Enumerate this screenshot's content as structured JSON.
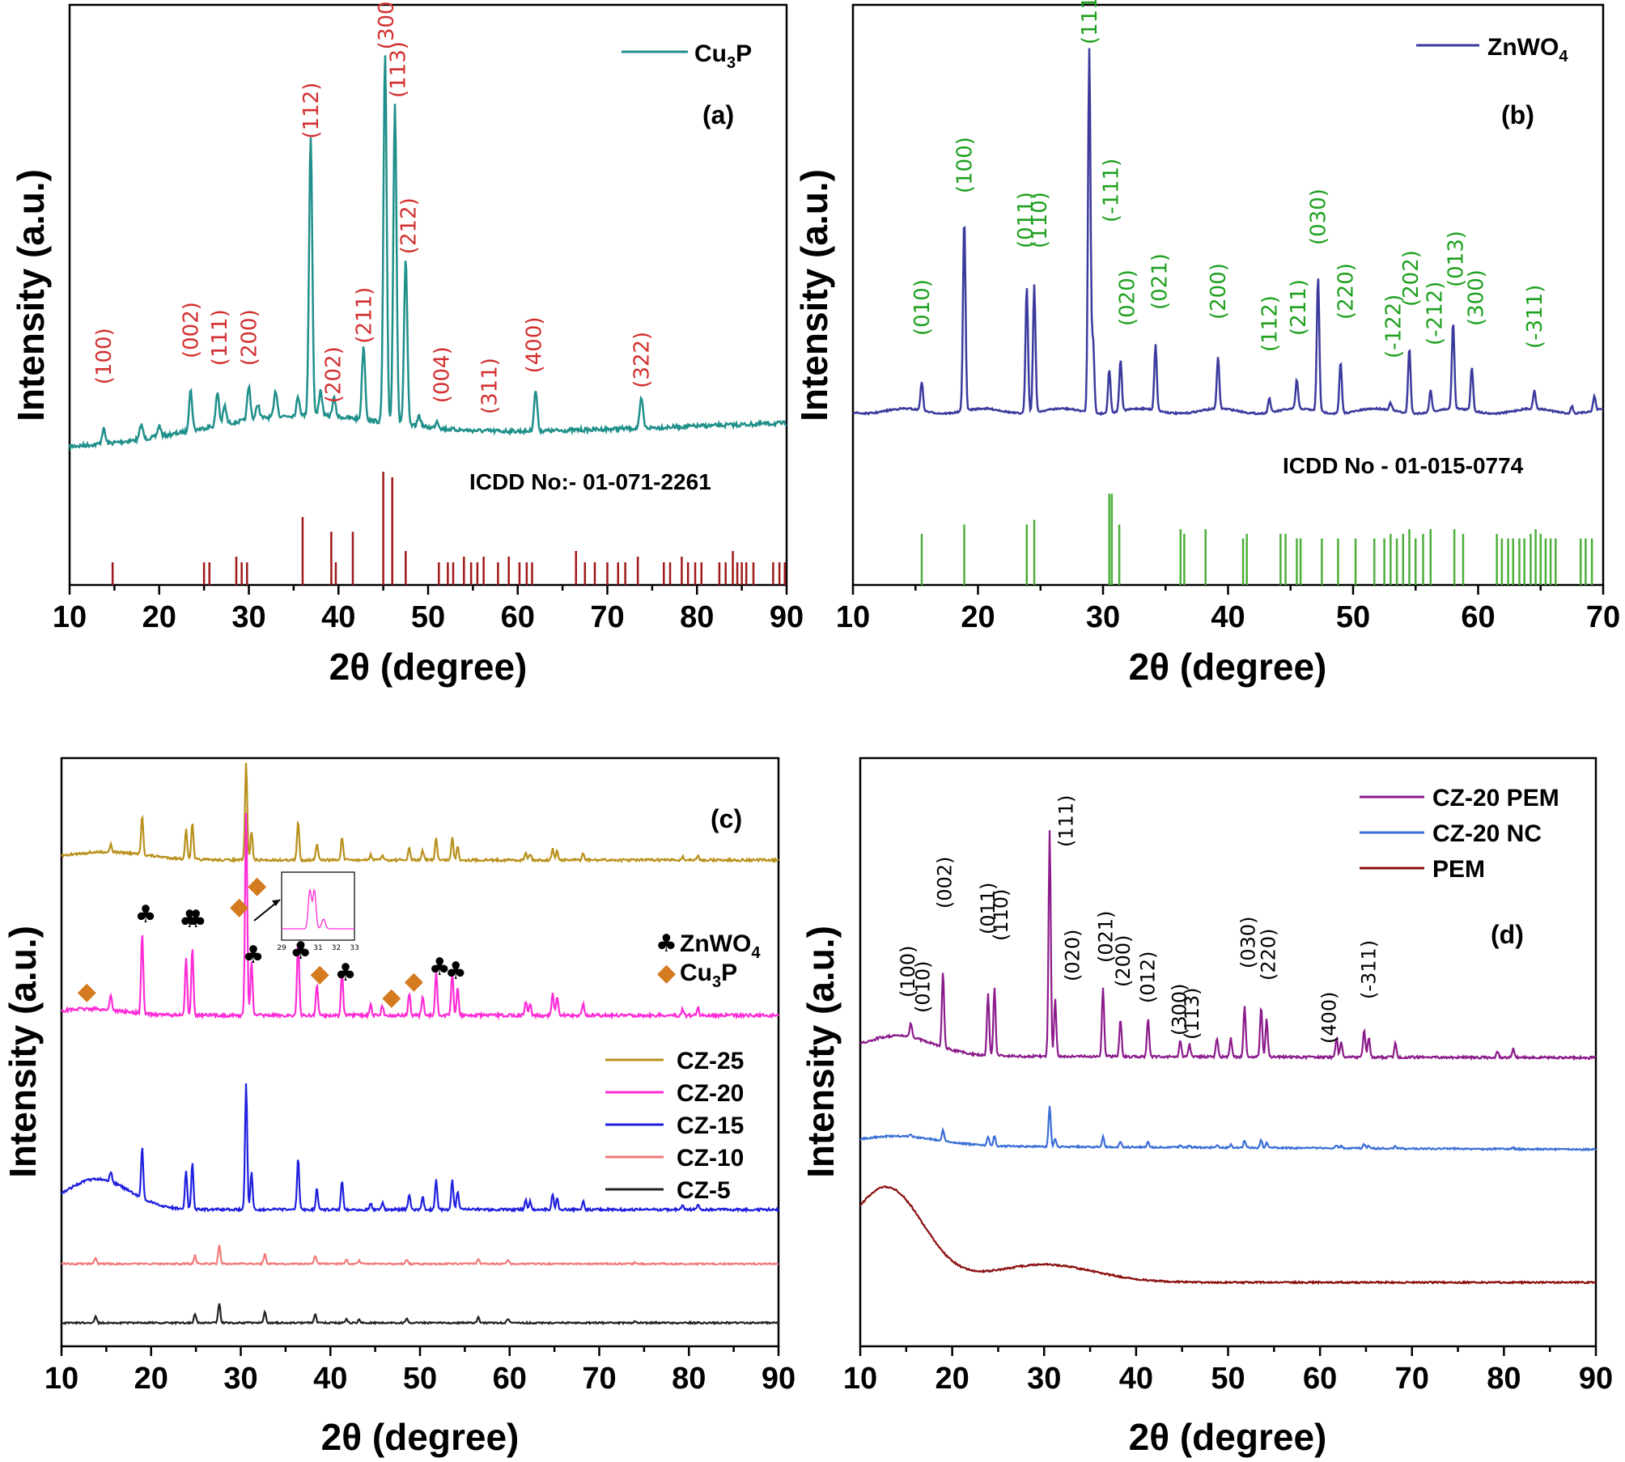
{
  "chart_data": [
    {
      "panel": "(a)",
      "type": "line",
      "xlabel": "2θ (degree)",
      "ylabel": "Intensity (a.u.)",
      "xlim": [
        10,
        90
      ],
      "xticks": [
        "10",
        "20",
        "30",
        "40",
        "50",
        "60",
        "70",
        "80",
        "90"
      ],
      "series": [
        {
          "name": "Cu3P",
          "color": "#1f8f8a",
          "baseline_start": 0.08,
          "baseline_end": 0.29
        }
      ],
      "peaks": [
        [
          13.8,
          0.04
        ],
        [
          18,
          0.04
        ],
        [
          20,
          0.03
        ],
        [
          23.5,
          0.11
        ],
        [
          26.5,
          0.09
        ],
        [
          27.3,
          0.05
        ],
        [
          30,
          0.09
        ],
        [
          31,
          0.04
        ],
        [
          33,
          0.07
        ],
        [
          35.5,
          0.05
        ],
        [
          36.9,
          0.76
        ],
        [
          38,
          0.07
        ],
        [
          39.5,
          0.05
        ],
        [
          42.8,
          0.2
        ],
        [
          45.2,
          1.0
        ],
        [
          46.3,
          0.87
        ],
        [
          47.5,
          0.45
        ],
        [
          49,
          0.03
        ],
        [
          51,
          0.02
        ],
        [
          62,
          0.11
        ],
        [
          73.8,
          0.08
        ]
      ],
      "ref_label": "ICDD No:- 01-071-2261",
      "ref_color": "#a01818",
      "ref_lines": [
        [
          14.8,
          0.2
        ],
        [
          25,
          0.2
        ],
        [
          25.6,
          0.2
        ],
        [
          28.6,
          0.25
        ],
        [
          29.2,
          0.2
        ],
        [
          29.8,
          0.2
        ],
        [
          36,
          0.6
        ],
        [
          39.2,
          0.47
        ],
        [
          39.7,
          0.2
        ],
        [
          41.6,
          0.47
        ],
        [
          45,
          1.0
        ],
        [
          46,
          0.95
        ],
        [
          47.5,
          0.3
        ],
        [
          51.2,
          0.2
        ],
        [
          52.2,
          0.2
        ],
        [
          52.8,
          0.2
        ],
        [
          54,
          0.25
        ],
        [
          54.8,
          0.2
        ],
        [
          55.5,
          0.2
        ],
        [
          56.2,
          0.25
        ],
        [
          57.8,
          0.2
        ],
        [
          59,
          0.25
        ],
        [
          60.2,
          0.2
        ],
        [
          61,
          0.2
        ],
        [
          61.6,
          0.2
        ],
        [
          66.5,
          0.3
        ],
        [
          67.5,
          0.2
        ],
        [
          68.6,
          0.2
        ],
        [
          70,
          0.2
        ],
        [
          71.2,
          0.2
        ],
        [
          72,
          0.2
        ],
        [
          73.4,
          0.25
        ],
        [
          76.3,
          0.2
        ],
        [
          77,
          0.2
        ],
        [
          78.3,
          0.25
        ],
        [
          79,
          0.2
        ],
        [
          79.8,
          0.2
        ],
        [
          80.5,
          0.2
        ],
        [
          82.5,
          0.2
        ],
        [
          83.2,
          0.2
        ],
        [
          84,
          0.3
        ],
        [
          84.5,
          0.2
        ],
        [
          85,
          0.2
        ],
        [
          85.5,
          0.2
        ],
        [
          86.3,
          0.2
        ],
        [
          88.5,
          0.2
        ],
        [
          89.2,
          0.2
        ],
        [
          89.8,
          0.2
        ]
      ],
      "hkl": [
        [
          "(100)",
          13.8,
          0.18
        ],
        [
          "(002)",
          23.5,
          0.25
        ],
        [
          "(111)",
          26.7,
          0.23
        ],
        [
          "(200)",
          30,
          0.23
        ],
        [
          "(112)",
          36.9,
          0.84
        ],
        [
          "(202)",
          39.4,
          0.13
        ],
        [
          "(211)",
          42.8,
          0.29
        ],
        [
          "(300)",
          45.3,
          1.08
        ],
        [
          "(113)",
          46.6,
          0.95
        ],
        [
          "(212)",
          47.8,
          0.53
        ],
        [
          "(004)",
          51.5,
          0.13
        ],
        [
          "(311)",
          56.8,
          0.1
        ],
        [
          "(400)",
          61.8,
          0.21
        ],
        [
          "(322)",
          73.8,
          0.17
        ]
      ]
    },
    {
      "panel": "(b)",
      "type": "line",
      "xlabel": "2θ (degree)",
      "ylabel": "Intensity (a.u.)",
      "xlim": [
        10,
        70
      ],
      "xticks": [
        "10",
        "20",
        "30",
        "40",
        "50",
        "60",
        "70"
      ],
      "series": [
        {
          "name": "ZnWO4",
          "color": "#3b3b9e",
          "baseline_start": 0.07,
          "baseline_end": 0.07
        }
      ],
      "peaks": [
        [
          15.5,
          0.08
        ],
        [
          18.9,
          0.53
        ],
        [
          23.9,
          0.35
        ],
        [
          24.5,
          0.35
        ],
        [
          28.9,
          1.0
        ],
        [
          29.2,
          0.2
        ],
        [
          30.5,
          0.12
        ],
        [
          31.4,
          0.14
        ],
        [
          34.2,
          0.18
        ],
        [
          39.2,
          0.14
        ],
        [
          43.3,
          0.04
        ],
        [
          45.5,
          0.08
        ],
        [
          47.2,
          0.37
        ],
        [
          49,
          0.14
        ],
        [
          53,
          0.02
        ],
        [
          54.5,
          0.18
        ],
        [
          56.2,
          0.06
        ],
        [
          58,
          0.24
        ],
        [
          59.5,
          0.12
        ],
        [
          64.5,
          0.05
        ],
        [
          67.5,
          0.02
        ],
        [
          69.3,
          0.04
        ]
      ],
      "ref_label": "ICDD No - 01-015-0774",
      "ref_color": "#4caf3a",
      "ref_lines": [
        [
          15.5,
          0.55
        ],
        [
          18.9,
          0.65
        ],
        [
          23.9,
          0.65
        ],
        [
          24.5,
          0.7
        ],
        [
          30.5,
          0.98
        ],
        [
          30.7,
          0.98
        ],
        [
          31.3,
          0.65
        ],
        [
          36.2,
          0.6
        ],
        [
          36.5,
          0.55
        ],
        [
          38.2,
          0.6
        ],
        [
          41.2,
          0.5
        ],
        [
          41.5,
          0.55
        ],
        [
          44.2,
          0.55
        ],
        [
          44.6,
          0.55
        ],
        [
          45.5,
          0.5
        ],
        [
          45.8,
          0.5
        ],
        [
          47.5,
          0.5
        ],
        [
          48.8,
          0.5
        ],
        [
          50.2,
          0.5
        ],
        [
          51.7,
          0.5
        ],
        [
          52.5,
          0.5
        ],
        [
          53,
          0.55
        ],
        [
          53.5,
          0.5
        ],
        [
          54,
          0.55
        ],
        [
          54.5,
          0.6
        ],
        [
          55,
          0.5
        ],
        [
          55.6,
          0.55
        ],
        [
          56.2,
          0.6
        ],
        [
          58.1,
          0.6
        ],
        [
          58.8,
          0.55
        ],
        [
          61.5,
          0.55
        ],
        [
          61.9,
          0.5
        ],
        [
          62.4,
          0.5
        ],
        [
          62.8,
          0.5
        ],
        [
          63.3,
          0.5
        ],
        [
          63.7,
          0.5
        ],
        [
          64.2,
          0.55
        ],
        [
          64.6,
          0.6
        ],
        [
          65,
          0.55
        ],
        [
          65.4,
          0.5
        ],
        [
          65.8,
          0.5
        ],
        [
          66.2,
          0.5
        ],
        [
          68.2,
          0.5
        ],
        [
          68.6,
          0.5
        ],
        [
          69.1,
          0.5
        ]
      ],
      "hkl": [
        [
          "(010)",
          15.5,
          0.17
        ],
        [
          "(100)",
          18.9,
          0.61
        ],
        [
          "(011)",
          23.8,
          0.44
        ],
        [
          "(110)",
          24.9,
          0.44
        ],
        [
          "(111)",
          28.9,
          1.07
        ],
        [
          "(-111)",
          30.6,
          0.52
        ],
        [
          "(020)",
          31.9,
          0.2
        ],
        [
          "(021)",
          34.5,
          0.25
        ],
        [
          "(200)",
          39.2,
          0.22
        ],
        [
          "(112)",
          43.3,
          0.12
        ],
        [
          "(211)",
          45.6,
          0.17
        ],
        [
          "(030)",
          47.2,
          0.45
        ],
        [
          "(220)",
          49.4,
          0.22
        ],
        [
          "(-122)",
          53.2,
          0.1
        ],
        [
          "(202)",
          54.6,
          0.26
        ],
        [
          "(-212)",
          56.5,
          0.14
        ],
        [
          "(013)",
          58.2,
          0.32
        ],
        [
          "(300)",
          59.8,
          0.2
        ],
        [
          "(-311)",
          64.5,
          0.13
        ]
      ]
    },
    {
      "panel": "(c)",
      "type": "line",
      "xlabel": "2θ (degree)",
      "ylabel": "Intensity (a.u.)",
      "xlim": [
        10,
        90
      ],
      "xticks": [
        "10",
        "20",
        "30",
        "40",
        "50",
        "60",
        "70",
        "80",
        "90"
      ],
      "series": [
        {
          "name": "CZ-25",
          "color": "#b8901a"
        },
        {
          "name": "CZ-20",
          "color": "#ff2bd6"
        },
        {
          "name": "CZ-15",
          "color": "#1f1fe0"
        },
        {
          "name": "CZ-10",
          "color": "#f07a7a"
        },
        {
          "name": "CZ-5",
          "color": "#222222"
        }
      ],
      "markers": [
        {
          "name": "ZnWO4",
          "symbol": "♣",
          "color": "#000000",
          "positions": [
            19,
            23.9,
            24.6,
            31,
            36.3,
            41.3,
            51.8,
            53.6
          ]
        },
        {
          "name": "Cu3P",
          "symbol": "◆",
          "color": "#d47a1f",
          "positions": [
            12.5,
            29.5,
            31.5,
            38.5,
            46.5,
            49
          ]
        }
      ],
      "inset_ticks": [
        "29",
        "30",
        "31",
        "32",
        "33"
      ]
    },
    {
      "panel": "(d)",
      "type": "line",
      "xlabel": "2θ (degree)",
      "ylabel": "Intensity (a.u.)",
      "xlim": [
        10,
        90
      ],
      "xticks": [
        "10",
        "20",
        "30",
        "40",
        "50",
        "60",
        "70",
        "80",
        "90"
      ],
      "series": [
        {
          "name": "CZ-20 PEM",
          "color": "#8b1a8b"
        },
        {
          "name": "CZ-20 NC",
          "color": "#3b6fd6"
        },
        {
          "name": "PEM",
          "color": "#8b0f0f"
        }
      ],
      "hkl": [
        "(100)",
        "(010)",
        "(002)",
        "(011)",
        "(110)",
        "(111)",
        "(020)",
        "(021)",
        "(200)",
        "(012)",
        "(300)",
        "(113)",
        "(030)",
        "(220)",
        "(400)",
        "(-311)"
      ]
    }
  ],
  "panel_a": {
    "label": "(a)",
    "legend": "Cu",
    "legend_sub": "3",
    "legend_tail": "P"
  },
  "panel_b": {
    "label": "(b)",
    "legend": "ZnWO",
    "legend_sub": "4"
  },
  "panel_c": {
    "label": "(c)",
    "sym1": "ZnWO",
    "sym1_sub": "4",
    "sym2": "Cu",
    "sym2_sub": "3",
    "sym2_tail": "P"
  },
  "panel_d": {
    "label": "(d)"
  }
}
